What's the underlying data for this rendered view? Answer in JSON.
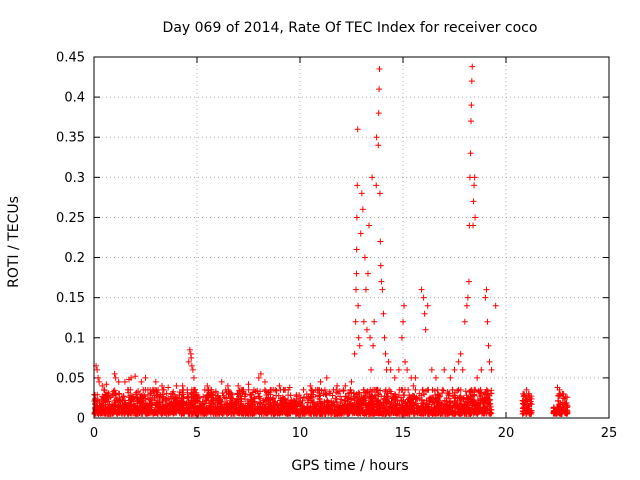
{
  "chart_data": {
    "type": "scatter",
    "title": "Day 069 of 2014, Rate Of TEC Index for receiver coco",
    "xlabel": "GPS time / hours",
    "ylabel": "ROTI / TECUs",
    "xlim": [
      0,
      25
    ],
    "ylim": [
      0,
      0.45
    ],
    "grid": true,
    "marker": "+",
    "xticks": [
      0,
      5,
      10,
      15,
      20,
      25
    ],
    "xtick_labels": [
      "0",
      "5",
      "10",
      "15",
      "20",
      "25"
    ],
    "yticks": [
      0,
      0.05,
      0.1,
      0.15,
      0.2,
      0.25,
      0.3,
      0.35,
      0.4,
      0.45
    ],
    "ytick_labels": [
      "0",
      "0.05",
      "0.1",
      "0.15",
      "0.2",
      "0.25",
      "0.3",
      "0.35",
      "0.4",
      "0.45"
    ],
    "series_color": "#ff0000",
    "dense_bands": [
      {
        "x_start": 0.0,
        "x_end": 19.3,
        "y_floor": 0.005,
        "y_ceiling": 0.035
      },
      {
        "x_start": 20.8,
        "x_end": 21.25,
        "y_floor": 0.005,
        "y_ceiling": 0.03
      },
      {
        "x_start": 22.3,
        "x_end": 23.0,
        "y_floor": 0.005,
        "y_ceiling": 0.03
      }
    ],
    "points": [
      [
        0.1,
        0.065
      ],
      [
        0.15,
        0.06
      ],
      [
        0.2,
        0.05
      ],
      [
        0.25,
        0.045
      ],
      [
        0.4,
        0.04
      ],
      [
        0.6,
        0.042
      ],
      [
        1.0,
        0.055
      ],
      [
        1.05,
        0.05
      ],
      [
        1.2,
        0.045
      ],
      [
        1.5,
        0.045
      ],
      [
        1.7,
        0.048
      ],
      [
        1.8,
        0.05
      ],
      [
        2.0,
        0.052
      ],
      [
        2.3,
        0.045
      ],
      [
        2.5,
        0.05
      ],
      [
        3.0,
        0.045
      ],
      [
        3.3,
        0.04
      ],
      [
        3.6,
        0.038
      ],
      [
        4.0,
        0.04
      ],
      [
        4.3,
        0.04
      ],
      [
        4.6,
        0.07
      ],
      [
        4.65,
        0.085
      ],
      [
        4.7,
        0.08
      ],
      [
        4.72,
        0.075
      ],
      [
        4.75,
        0.065
      ],
      [
        4.8,
        0.06
      ],
      [
        4.85,
        0.05
      ],
      [
        5.5,
        0.04
      ],
      [
        6.2,
        0.045
      ],
      [
        6.5,
        0.04
      ],
      [
        7.0,
        0.04
      ],
      [
        7.5,
        0.042
      ],
      [
        8.0,
        0.05
      ],
      [
        8.1,
        0.055
      ],
      [
        8.3,
        0.045
      ],
      [
        9.0,
        0.04
      ],
      [
        9.5,
        0.038
      ],
      [
        10.5,
        0.04
      ],
      [
        11.0,
        0.045
      ],
      [
        11.3,
        0.05
      ],
      [
        11.8,
        0.04
      ],
      [
        12.2,
        0.04
      ],
      [
        12.5,
        0.045
      ],
      [
        12.65,
        0.08
      ],
      [
        12.7,
        0.12
      ],
      [
        12.72,
        0.16
      ],
      [
        12.74,
        0.18
      ],
      [
        12.75,
        0.21
      ],
      [
        12.76,
        0.25
      ],
      [
        12.78,
        0.29
      ],
      [
        12.8,
        0.36
      ],
      [
        12.82,
        0.14
      ],
      [
        12.85,
        0.1
      ],
      [
        12.9,
        0.09
      ],
      [
        12.95,
        0.23
      ],
      [
        13.0,
        0.28
      ],
      [
        13.05,
        0.26
      ],
      [
        13.1,
        0.12
      ],
      [
        13.15,
        0.2
      ],
      [
        13.2,
        0.16
      ],
      [
        13.25,
        0.11
      ],
      [
        13.3,
        0.18
      ],
      [
        13.35,
        0.24
      ],
      [
        13.4,
        0.1
      ],
      [
        13.45,
        0.06
      ],
      [
        13.5,
        0.3
      ],
      [
        13.55,
        0.09
      ],
      [
        13.6,
        0.12
      ],
      [
        13.7,
        0.29
      ],
      [
        13.72,
        0.35
      ],
      [
        13.8,
        0.34
      ],
      [
        13.82,
        0.38
      ],
      [
        13.84,
        0.41
      ],
      [
        13.86,
        0.435
      ],
      [
        13.88,
        0.28
      ],
      [
        13.9,
        0.22
      ],
      [
        13.92,
        0.19
      ],
      [
        13.95,
        0.17
      ],
      [
        14.0,
        0.16
      ],
      [
        14.05,
        0.13
      ],
      [
        14.1,
        0.1
      ],
      [
        14.15,
        0.08
      ],
      [
        14.2,
        0.06
      ],
      [
        14.3,
        0.07
      ],
      [
        14.4,
        0.06
      ],
      [
        14.6,
        0.05
      ],
      [
        14.8,
        0.06
      ],
      [
        14.95,
        0.1
      ],
      [
        15.0,
        0.12
      ],
      [
        15.05,
        0.14
      ],
      [
        15.1,
        0.07
      ],
      [
        15.2,
        0.06
      ],
      [
        15.4,
        0.05
      ],
      [
        15.5,
        0.04
      ],
      [
        15.6,
        0.05
      ],
      [
        15.9,
        0.16
      ],
      [
        16.0,
        0.15
      ],
      [
        16.05,
        0.13
      ],
      [
        16.1,
        0.11
      ],
      [
        16.2,
        0.14
      ],
      [
        16.4,
        0.06
      ],
      [
        16.6,
        0.05
      ],
      [
        17.0,
        0.06
      ],
      [
        17.3,
        0.05
      ],
      [
        17.5,
        0.06
      ],
      [
        17.7,
        0.07
      ],
      [
        17.8,
        0.08
      ],
      [
        17.9,
        0.06
      ],
      [
        18.0,
        0.12
      ],
      [
        18.1,
        0.14
      ],
      [
        18.15,
        0.15
      ],
      [
        18.2,
        0.17
      ],
      [
        18.22,
        0.24
      ],
      [
        18.25,
        0.3
      ],
      [
        18.28,
        0.33
      ],
      [
        18.3,
        0.37
      ],
      [
        18.32,
        0.39
      ],
      [
        18.34,
        0.42
      ],
      [
        18.36,
        0.438
      ],
      [
        18.4,
        0.24
      ],
      [
        18.42,
        0.27
      ],
      [
        18.45,
        0.29
      ],
      [
        18.48,
        0.3
      ],
      [
        18.5,
        0.25
      ],
      [
        18.6,
        0.05
      ],
      [
        18.8,
        0.06
      ],
      [
        19.0,
        0.15
      ],
      [
        19.05,
        0.16
      ],
      [
        19.1,
        0.12
      ],
      [
        19.15,
        0.09
      ],
      [
        19.2,
        0.07
      ],
      [
        19.3,
        0.06
      ],
      [
        19.5,
        0.14
      ],
      [
        21.0,
        0.035
      ],
      [
        21.1,
        0.03
      ],
      [
        22.5,
        0.038
      ],
      [
        22.6,
        0.035
      ],
      [
        22.8,
        0.03
      ]
    ]
  }
}
